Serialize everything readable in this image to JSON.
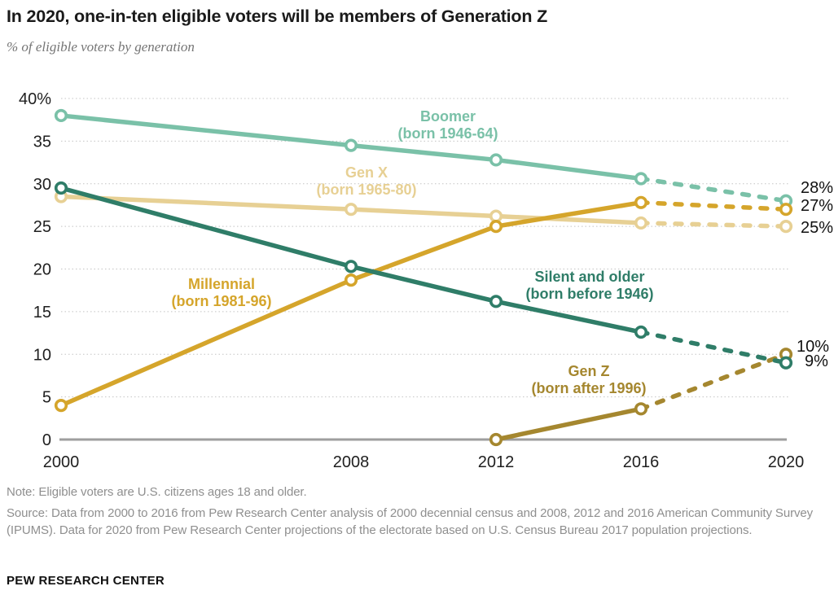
{
  "header": {
    "title": "In 2020, one-in-ten eligible voters will be members of Generation Z",
    "subtitle": "% of eligible voters by generation"
  },
  "chart_data": {
    "type": "line",
    "title": "In 2020, one-in-ten eligible voters will be members of Generation Z",
    "subtitle": "% of eligible voters by generation",
    "x": [
      2000,
      2008,
      2012,
      2016,
      2020
    ],
    "x_tick_labels": [
      "2000",
      "2008",
      "2012",
      "2016",
      "2020"
    ],
    "ylim": [
      0,
      40
    ],
    "y_tick_values": [
      0,
      5,
      10,
      15,
      20,
      25,
      30,
      35,
      40
    ],
    "y_tick_labels": [
      "0",
      "5",
      "10",
      "15",
      "20",
      "25",
      "30",
      "35",
      "40%"
    ],
    "grid": "dotted horizontal gridlines, solid gray zero axis",
    "legend_position": "inline series labels on chart",
    "projection_start_year": 2016,
    "projection_style": "dashed segments from 2016 to 2020 are projections",
    "series": [
      {
        "name": "Boomer",
        "annotation": [
          "Boomer",
          "(born 1946-64)"
        ],
        "color": "#7ac1a8",
        "values": [
          38,
          34.5,
          32.8,
          30.6,
          28
        ],
        "end_label": "28%"
      },
      {
        "name": "Gen X",
        "annotation": [
          "Gen X",
          "(born 1965-80)"
        ],
        "color": "#e7d094",
        "values": [
          28.5,
          27,
          26.2,
          25.4,
          25
        ],
        "end_label": "25%"
      },
      {
        "name": "Millennial",
        "annotation": [
          "Millennial",
          "(born 1981-96)"
        ],
        "color": "#d5a52b",
        "values": [
          4,
          18.7,
          25,
          27.8,
          27
        ],
        "end_label": "27%"
      },
      {
        "name": "Gen Z",
        "annotation": [
          "Gen Z",
          "(born after 1996)"
        ],
        "color": "#a5872f",
        "values": [
          null,
          null,
          0,
          3.6,
          10
        ],
        "end_label": "10%"
      },
      {
        "name": "Silent and older",
        "annotation": [
          "Silent and older",
          "(born before 1946)"
        ],
        "color": "#2f7d68",
        "values": [
          29.5,
          20.3,
          16.2,
          12.6,
          9
        ],
        "end_label": "9%"
      }
    ]
  },
  "footer": {
    "note": "Note: Eligible voters are U.S. citizens ages 18 and older.",
    "source": "Source: Data from 2000 to 2016 from Pew Research Center analysis of 2000 decennial census and 2008, 2012 and 2016 American Community Survey (IPUMS). Data for 2020 from Pew Research Center projections of the electorate based on U.S. Census Bureau 2017 population projections.",
    "brand": "PEW RESEARCH CENTER"
  },
  "colors": {
    "background": "#ffffff",
    "gridline": "#c4c4c4",
    "zero_axis": "#9e9e9e",
    "tick_text": "#1f1f1f",
    "note_text": "#8f8f8f"
  }
}
